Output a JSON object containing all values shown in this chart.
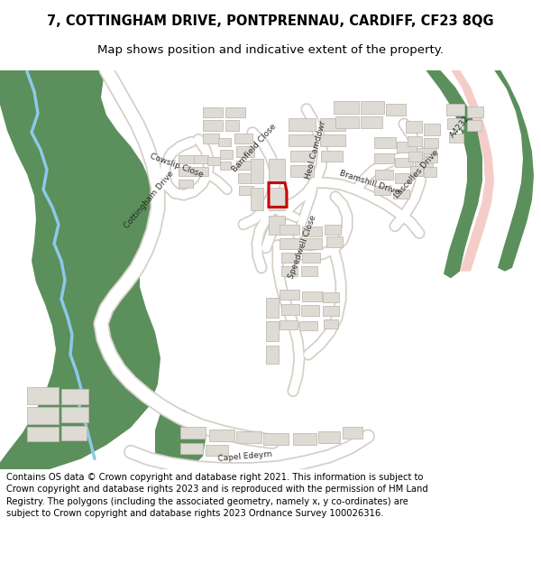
{
  "title_line1": "7, COTTINGHAM DRIVE, PONTPRENNAU, CARDIFF, CF23 8QG",
  "title_line2": "Map shows position and indicative extent of the property.",
  "footer_text": "Contains OS data © Crown copyright and database right 2021. This information is subject to Crown copyright and database rights 2023 and is reproduced with the permission of HM Land Registry. The polygons (including the associated geometry, namely x, y co-ordinates) are subject to Crown copyright and database rights 2023 Ordnance Survey 100026316.",
  "map_bg": "#f2f0ed",
  "green_color": "#5b8f5b",
  "river_color": "#8ec8e8",
  "road_color": "#ffffff",
  "road_edge_color": "#d4d0c8",
  "building_face": "#dedad4",
  "building_edge": "#c0bbb4",
  "pink_road": "#f5cdc8",
  "highlight_color": "#cc0000",
  "highlight_lw": 2.2,
  "title_fontsize": 10.5,
  "subtitle_fontsize": 9.5,
  "footer_fontsize": 7.2,
  "label_fontsize": 6.5
}
